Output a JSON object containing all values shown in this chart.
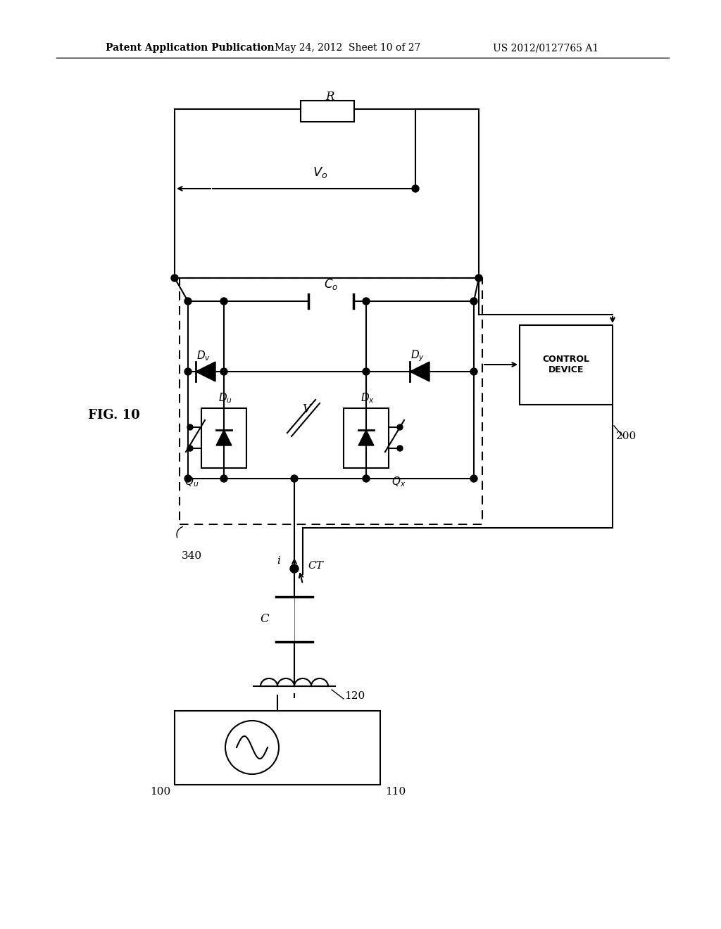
{
  "bg_color": "#ffffff",
  "line_color": "#000000",
  "patent_header": "Patent Application Publication",
  "patent_date": "May 24, 2012",
  "patent_sheet": "Sheet 10 of 27",
  "patent_number": "US 2012/0127765 A1",
  "fig_label": "FIG. 10"
}
